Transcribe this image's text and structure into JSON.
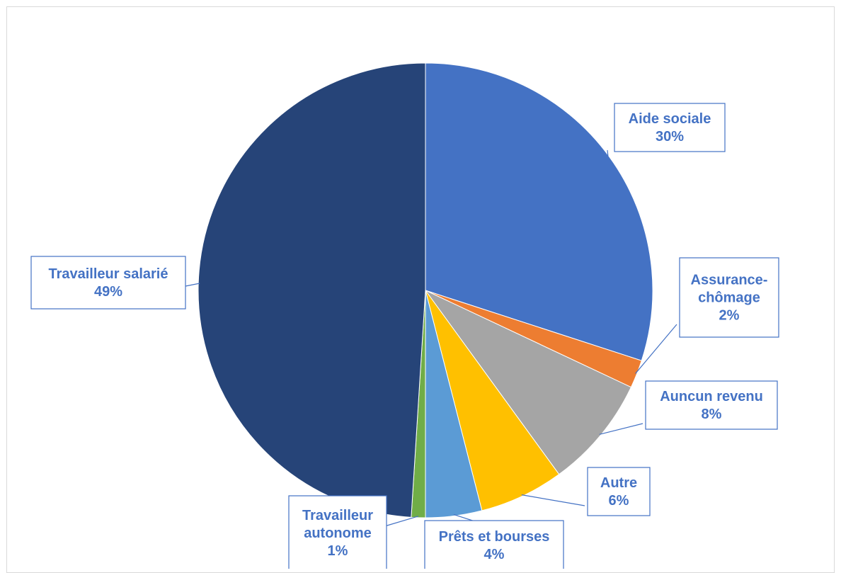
{
  "chart_data": {
    "type": "pie",
    "slices": [
      {
        "label": [
          "Aide sociale"
        ],
        "value": 30,
        "value_label": "30%",
        "color": "#4472c4"
      },
      {
        "label": [
          "Assurance-",
          "chômage"
        ],
        "value": 2,
        "value_label": "2%",
        "color": "#ed7d31"
      },
      {
        "label": [
          "Auncun revenu"
        ],
        "value": 8,
        "value_label": "8%",
        "color": "#a5a5a5"
      },
      {
        "label": [
          "Autre"
        ],
        "value": 6,
        "value_label": "6%",
        "color": "#ffc000"
      },
      {
        "label": [
          "Prêts et bourses"
        ],
        "value": 4,
        "value_label": "4%",
        "color": "#5b9bd5"
      },
      {
        "label": [
          "Travailleur",
          "autonome"
        ],
        "value": 1,
        "value_label": "1%",
        "color": "#70ad47"
      },
      {
        "label": [
          "Travailleur salarié"
        ],
        "value": 49,
        "value_label": "49%",
        "color": "#264478"
      }
    ],
    "legend": "none",
    "start_angle": "12 o'clock, clockwise"
  }
}
